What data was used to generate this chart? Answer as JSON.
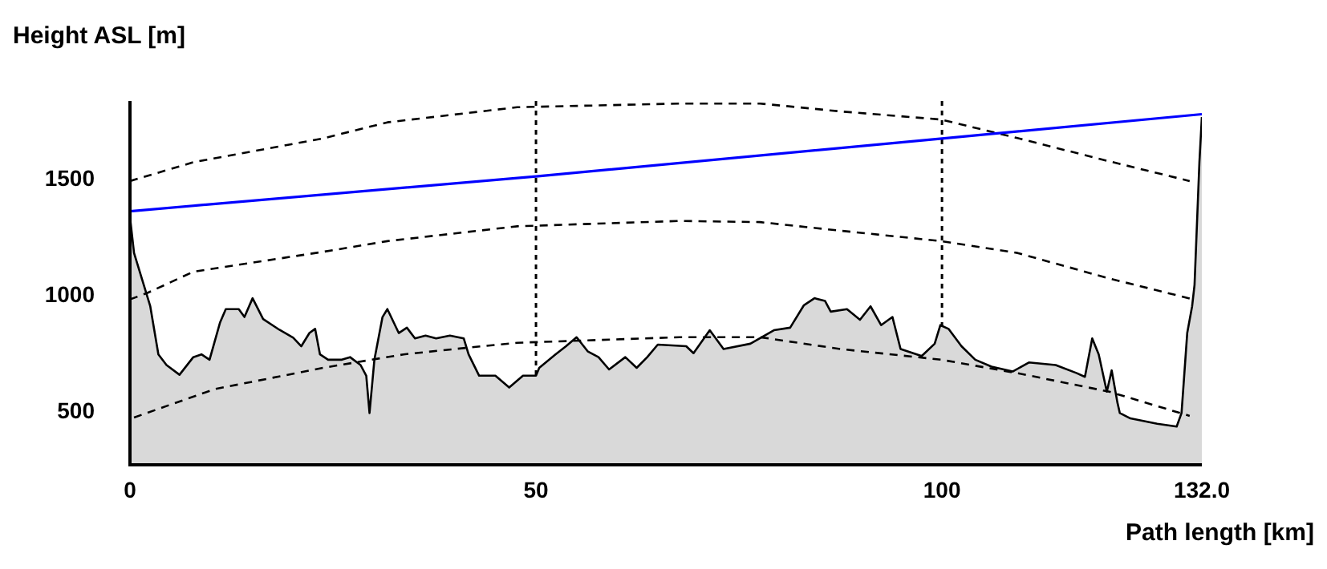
{
  "chart_data": {
    "type": "line",
    "xlabel": "Path length [km]",
    "ylabel": "Height ASL [m]",
    "xlim": [
      0,
      132
    ],
    "xticks": [
      0,
      50,
      100,
      {
        "value": 132,
        "label": "132.0"
      }
    ],
    "ylim": [
      272,
      1840
    ],
    "yticks": [
      500,
      1000,
      1500
    ],
    "grid": false,
    "legend": false,
    "marker": "none",
    "series": [
      {
        "type": "area",
        "color": "#d9d9d9",
        "line_style": "solid",
        "x": [
          0,
          0.5,
          1.5,
          2.5,
          3.5,
          4.5,
          6.1,
          7.8,
          8.8,
          9.8,
          11.1,
          11.8,
          13.4,
          14.1,
          15.1,
          16.4,
          18.4,
          20.1,
          21.1,
          22.1,
          22.8,
          23.4,
          24.4,
          26.1,
          27.1,
          28.4,
          29.1,
          29.5,
          30.1,
          31.1,
          31.7,
          33.1,
          34.1,
          35.1,
          36.4,
          37.7,
          39.4,
          41.1,
          41.7,
          43,
          45,
          46.7,
          48.4,
          50,
          50.4,
          52.4,
          53.7,
          55,
          56.4,
          57.7,
          59,
          61,
          62.4,
          63.7,
          65,
          68.5,
          69.4,
          71.4,
          73.1,
          76.4,
          79.3,
          81.3,
          83,
          84.3,
          85.6,
          86.3,
          88.3,
          89.9,
          91.2,
          92.5,
          93.9,
          94.9,
          97.5,
          99.1,
          99.8,
          100.8,
          102.4,
          104.1,
          106.1,
          108.7,
          110.7,
          114,
          116.6,
          117.6,
          118.5,
          119.3,
          120.3,
          120.9,
          121.6,
          121.9,
          123.2,
          126.5,
          128.9,
          129.5,
          130.2,
          130.8,
          131.1,
          131.7,
          132
        ],
        "values": [
          1340,
          1185,
          1070,
          955,
          748,
          702,
          660,
          736,
          748,
          725,
          886,
          943,
          943,
          909,
          990,
          900,
          854,
          820,
          783,
          840,
          858,
          748,
          725,
          725,
          736,
          702,
          656,
          495,
          725,
          909,
          943,
          840,
          863,
          817,
          829,
          817,
          829,
          817,
          748,
          656,
          656,
          605,
          656,
          656,
          690,
          748,
          783,
          822,
          760,
          736,
          683,
          736,
          690,
          736,
          790,
          783,
          753,
          852,
          771,
          794,
          852,
          863,
          960,
          990,
          978,
          932,
          943,
          897,
          955,
          874,
          909,
          771,
          741,
          794,
          874,
          858,
          783,
          725,
          695,
          674,
          713,
          702,
          667,
          651,
          817,
          748,
          587,
          679,
          541,
          495,
          472,
          449,
          437,
          495,
          840,
          955,
          1047,
          1576,
          1771
        ]
      },
      {
        "type": "line",
        "color": "#0000ff",
        "line_style": "solid",
        "x": [
          0,
          50,
          100,
          132
        ],
        "values": [
          1365,
          1515,
          1678,
          1783
        ]
      },
      {
        "type": "line",
        "color": "#000000",
        "line_style": "dashed",
        "x": [
          0,
          7.8,
          23.8,
          31.7,
          47.7,
          67.7,
          77.6,
          87.5,
          99.9,
          109.3,
          120.6,
          130.5
        ],
        "values": [
          1495,
          1576,
          1679,
          1748,
          1813,
          1829,
          1829,
          1795,
          1760,
          1680,
          1580,
          1495
        ]
      },
      {
        "type": "line",
        "color": "#000000",
        "line_style": "dashed",
        "x": [
          0,
          2.1,
          7.8,
          23.8,
          31.7,
          47.7,
          67.7,
          77.6,
          87.5,
          99.9,
          109.3,
          120.6,
          130.5
        ],
        "values": [
          985,
          1012,
          1104,
          1190,
          1236,
          1300,
          1323,
          1318,
          1281,
          1236,
          1185,
          1075,
          989
        ]
      },
      {
        "type": "line",
        "color": "#000000",
        "line_style": "dashed",
        "x": [
          0.5,
          10.4,
          23.8,
          33.7,
          41.1,
          47.7,
          67.7,
          77.6,
          87.5,
          99.9,
          109.3,
          120.6,
          130.5
        ],
        "values": [
          476,
          598,
          690,
          748,
          775,
          798,
          822,
          822,
          771,
          725,
          667,
          587,
          483
        ]
      }
    ],
    "ref_lines": [
      {
        "axis": "x",
        "value": 50,
        "color": "#000000",
        "line_style": "dotted"
      },
      {
        "axis": "x",
        "value": 100,
        "color": "#000000",
        "line_style": "dotted"
      }
    ]
  }
}
